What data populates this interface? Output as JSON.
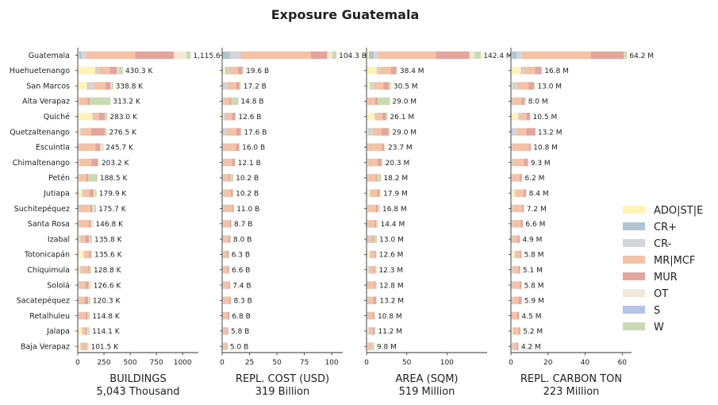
{
  "chart_data": {
    "type": "bar",
    "orientation": "horizontal",
    "stacked": true,
    "title": "Exposure Guatemala",
    "categories": [
      "Guatemala",
      "Huehuetenango",
      "San Marcos",
      "Alta Verapaz",
      "Quiché",
      "Quetzaltenango",
      "Escuintla",
      "Chimaltenango",
      "Petén",
      "Jutiapa",
      "Suchitepéquez",
      "Santa Rosa",
      "Izabal",
      "Totonicapán",
      "Chiquimula",
      "Sololá",
      "Sacatepéquez",
      "Retalhuleu",
      "Jalapa",
      "Baja Verapaz"
    ],
    "legend_position": "right",
    "series_names": [
      "ADO|ST|E",
      "CR+",
      "CR-",
      "MR|MCF",
      "MUR",
      "OT",
      "S",
      "W"
    ],
    "series_colors": [
      "#fff3b8",
      "#afc5d3",
      "#d3d5d8",
      "#f4c2a6",
      "#e4a59e",
      "#f3e7d9",
      "#b5c4e6",
      "#c9dbb4"
    ],
    "panels": [
      {
        "xlabel": "BUILDINGS",
        "total": "5,043 Thousand",
        "xlim": [
          0,
          1150
        ],
        "ticks": [
          0,
          250,
          500,
          750,
          1000
        ],
        "value_labels": [
          "1,115.6 K",
          "430.3 K",
          "338.8 K",
          "313.2 K",
          "283.0 K",
          "276.5 K",
          "245.7 K",
          "203.2 K",
          "188.5 K",
          "179.9 K",
          "175.7 K",
          "146.8 K",
          "135.8 K",
          "135.6 K",
          "128.8 K",
          "126.6 K",
          "120.3 K",
          "114.8 K",
          "114.1 K",
          "101.5 K"
        ],
        "values": [
          [
            12,
            25,
            40,
            470,
            370,
            120,
            0,
            40
          ],
          [
            170,
            10,
            15,
            110,
            70,
            10,
            0,
            45
          ],
          [
            90,
            8,
            55,
            110,
            50,
            10,
            0,
            15
          ],
          [
            8,
            2,
            3,
            80,
            20,
            0,
            0,
            200
          ],
          [
            140,
            2,
            5,
            55,
            55,
            0,
            0,
            26
          ],
          [
            20,
            3,
            15,
            90,
            130,
            3,
            0,
            15
          ],
          [
            5,
            2,
            3,
            160,
            45,
            20,
            0,
            10
          ],
          [
            10,
            2,
            5,
            115,
            60,
            10,
            0,
            2
          ],
          [
            8,
            2,
            3,
            70,
            20,
            3,
            0,
            82
          ],
          [
            40,
            2,
            10,
            60,
            40,
            10,
            0,
            18
          ],
          [
            5,
            2,
            3,
            110,
            20,
            15,
            0,
            20
          ],
          [
            5,
            2,
            3,
            95,
            20,
            15,
            0,
            7
          ],
          [
            15,
            3,
            10,
            45,
            35,
            5,
            0,
            23
          ],
          [
            55,
            2,
            5,
            45,
            20,
            5,
            0,
            4
          ],
          [
            20,
            2,
            10,
            65,
            15,
            5,
            0,
            12
          ],
          [
            8,
            2,
            5,
            60,
            30,
            15,
            0,
            7
          ],
          [
            5,
            2,
            3,
            55,
            35,
            5,
            0,
            15
          ],
          [
            5,
            2,
            3,
            65,
            20,
            5,
            0,
            15
          ],
          [
            40,
            2,
            3,
            30,
            15,
            10,
            0,
            14
          ],
          [
            25,
            2,
            5,
            40,
            10,
            5,
            0,
            15
          ]
        ]
      },
      {
        "xlabel": "REPL. COST (USD)",
        "total": "319 Billion",
        "xlim": [
          0,
          110
        ],
        "ticks": [
          0,
          25,
          50,
          75,
          100
        ],
        "value_labels": [
          "104.3 B",
          "19.6 B",
          "17.2 B",
          "14.8 B",
          "12.6 B",
          "17.6 B",
          "16.0 B",
          "12.1 B",
          "10.2 B",
          "10.2 B",
          "11.0 B",
          "8.7 B",
          "8.0 B",
          "6.3 B",
          "6.6 B",
          "7.4 B",
          "8.3 B",
          "6.8 B",
          "5.8 B",
          "5.0 B"
        ],
        "values": [
          [
            0,
            7.5,
            9.5,
            64,
            15,
            4.3,
            0,
            4
          ],
          [
            3,
            1,
            1.5,
            9,
            4,
            0.6,
            0,
            0.5
          ],
          [
            1,
            1,
            3,
            8,
            3,
            0.7,
            0,
            0.5
          ],
          [
            0.3,
            0.3,
            1,
            5,
            2,
            0.2,
            0,
            6
          ],
          [
            1.5,
            0.5,
            1,
            6,
            3,
            0.3,
            0,
            0.3
          ],
          [
            0.5,
            0.5,
            3,
            9,
            4,
            0.3,
            0,
            0.3
          ],
          [
            0.3,
            0.3,
            0.5,
            11.5,
            3,
            0.3,
            0,
            0.1
          ],
          [
            0.3,
            0.3,
            0.5,
            8,
            2.5,
            0.4,
            0,
            0.1
          ],
          [
            0.2,
            0.2,
            0.5,
            5,
            1.5,
            0.2,
            0,
            2.6
          ],
          [
            0.5,
            0.3,
            1,
            6,
            2,
            0.3,
            0,
            0.1
          ],
          [
            0.3,
            0.3,
            0.5,
            8,
            1.5,
            0.3,
            0,
            0.1
          ],
          [
            0.2,
            0.3,
            0.5,
            6,
            1.3,
            0.3,
            0,
            0.1
          ],
          [
            0.3,
            0.3,
            0.5,
            4.5,
            1.5,
            0.3,
            0,
            0.6
          ],
          [
            0.5,
            0.2,
            0.5,
            3.5,
            1.3,
            0.2,
            0,
            0.1
          ],
          [
            0.3,
            0.2,
            0.5,
            4,
            1.3,
            0.2,
            0,
            0.1
          ],
          [
            0.2,
            0.2,
            0.5,
            5,
            1.3,
            0.2,
            0,
            0
          ],
          [
            0.1,
            0.2,
            0.5,
            6,
            1.3,
            0.2,
            0,
            0
          ],
          [
            0.1,
            0.2,
            0.3,
            4.5,
            1.5,
            0.1,
            0,
            0.1
          ],
          [
            0.5,
            0.2,
            0.3,
            3.5,
            1,
            0.2,
            0,
            0.1
          ],
          [
            0.3,
            0.2,
            0.5,
            3,
            0.8,
            0.1,
            0,
            0.1
          ]
        ]
      },
      {
        "xlabel": "AREA (SQM)",
        "total": "519 Million",
        "xlim": [
          0,
          150
        ],
        "ticks": [
          0,
          50,
          100
        ],
        "value_labels": [
          "142.4 M",
          "38.4 M",
          "30.5 M",
          "29.0 M",
          "26.1 M",
          "29.0 M",
          "23.7 M",
          "20.3 M",
          "18.2 M",
          "17.9 M",
          "16.8 M",
          "14.4 M",
          "13.0 M",
          "12.6 M",
          "12.3 M",
          "12.8 M",
          "13.2 M",
          "10.8 M",
          "11.2 M",
          "9.8 M"
        ],
        "values": [
          [
            3,
            6,
            5,
            72,
            42,
            6,
            0,
            8.4
          ],
          [
            13,
            1,
            2,
            14,
            7,
            1,
            0,
            0.4
          ],
          [
            5,
            1,
            4,
            11,
            7,
            1,
            0,
            1.5
          ],
          [
            1,
            0.3,
            0.5,
            9,
            3,
            0.2,
            0,
            15
          ],
          [
            10,
            0.5,
            1,
            8,
            5,
            0.3,
            0,
            1.3
          ],
          [
            2,
            0.5,
            5,
            11,
            9,
            0.5,
            0,
            1
          ],
          [
            0.5,
            0.3,
            0.5,
            18,
            2.5,
            1.5,
            0,
            0.4
          ],
          [
            1,
            0.3,
            0.5,
            12,
            5,
            1.3,
            0,
            0.2
          ],
          [
            0.5,
            0.3,
            0.5,
            10,
            2,
            0.5,
            0,
            4.4
          ],
          [
            4,
            0.3,
            1,
            8,
            3,
            1.3,
            0,
            0.3
          ],
          [
            1,
            0.3,
            0.5,
            10,
            2.5,
            1.3,
            0,
            1.2
          ],
          [
            0.5,
            0.3,
            0.5,
            9,
            2,
            1.5,
            0,
            0.6
          ],
          [
            1,
            0.5,
            1,
            5,
            2,
            0.5,
            0,
            3
          ],
          [
            4,
            0.3,
            0.5,
            5,
            1.8,
            0.5,
            0,
            0.5
          ],
          [
            2,
            0.3,
            1,
            6,
            1.5,
            0.5,
            0,
            1
          ],
          [
            0.5,
            0.3,
            0.5,
            8,
            2,
            1.2,
            0,
            0.3
          ],
          [
            0.5,
            0.3,
            0.5,
            7,
            3.5,
            0.7,
            0,
            0.7
          ],
          [
            0.5,
            0.3,
            0.5,
            6,
            2,
            0.5,
            0,
            1
          ],
          [
            2,
            0.3,
            0.5,
            5,
            2,
            0.4,
            0,
            1
          ],
          [
            1,
            0.3,
            0.5,
            3.5,
            1,
            0.5,
            0,
            3
          ]
        ]
      },
      {
        "xlabel": "REPL. CARBON TON",
        "total": "223 Million",
        "xlim": [
          0,
          65
        ],
        "ticks": [
          0,
          20,
          40,
          60
        ],
        "value_labels": [
          "64.2 M",
          "16.8 M",
          "13.0 M",
          "8.0 M",
          "10.5 M",
          "13.2 M",
          "10.8 M",
          "9.3 M",
          "6.2 M",
          "8.4 M",
          "7.2 M",
          "6.6 M",
          "4.9 M",
          "5.8 M",
          "5.1 M",
          "5.8 M",
          "5.9 M",
          "4.5 M",
          "5.2 M",
          "4.2 M"
        ],
        "values": [
          [
            0.5,
            2.5,
            3,
            37,
            18,
            0.3,
            0,
            1.3
          ],
          [
            5.5,
            0.5,
            1,
            6,
            3.5,
            0.2,
            0,
            0.1
          ],
          [
            1,
            0.5,
            2,
            6,
            3,
            0.2,
            0,
            0.3
          ],
          [
            0.2,
            0.2,
            0.3,
            5,
            1.5,
            0.1,
            0,
            0.7
          ],
          [
            4,
            0.3,
            0.5,
            3.5,
            2,
            0.1,
            0,
            0.1
          ],
          [
            0.5,
            0.3,
            2.4,
            5,
            5,
            0,
            0,
            0
          ],
          [
            0.2,
            0.2,
            0.3,
            9,
            1,
            0.1,
            0,
            0
          ],
          [
            0.5,
            0.2,
            0.3,
            6,
            2.2,
            0.1,
            0,
            0
          ],
          [
            0.2,
            0.1,
            0.3,
            4,
            1,
            0.1,
            0,
            0.5
          ],
          [
            2,
            0.2,
            0.5,
            4,
            1.5,
            0.2,
            0,
            0
          ],
          [
            0.2,
            0.2,
            0.3,
            5.5,
            0.8,
            0.2,
            0,
            0
          ],
          [
            0.2,
            0.2,
            0.3,
            4.5,
            1.2,
            0.2,
            0,
            0
          ],
          [
            0.2,
            0.2,
            0.3,
            3,
            1,
            0.1,
            0,
            0.1
          ],
          [
            2,
            0.1,
            0.2,
            2.5,
            0.9,
            0.1,
            0,
            0
          ],
          [
            0.5,
            0.2,
            0.3,
            3,
            1,
            0.1,
            0,
            0
          ],
          [
            0.2,
            0.2,
            0.3,
            4,
            1,
            0.1,
            0,
            0
          ],
          [
            0.2,
            0.1,
            0.3,
            3.5,
            1.7,
            0.1,
            0,
            0
          ],
          [
            0.1,
            0.1,
            0.2,
            3,
            1,
            0.1,
            0,
            0
          ],
          [
            1,
            0.1,
            0.2,
            3,
            0.8,
            0.1,
            0,
            0
          ],
          [
            0.5,
            0.1,
            0.3,
            2.3,
            0.8,
            0.1,
            0,
            0.1
          ]
        ]
      }
    ]
  }
}
